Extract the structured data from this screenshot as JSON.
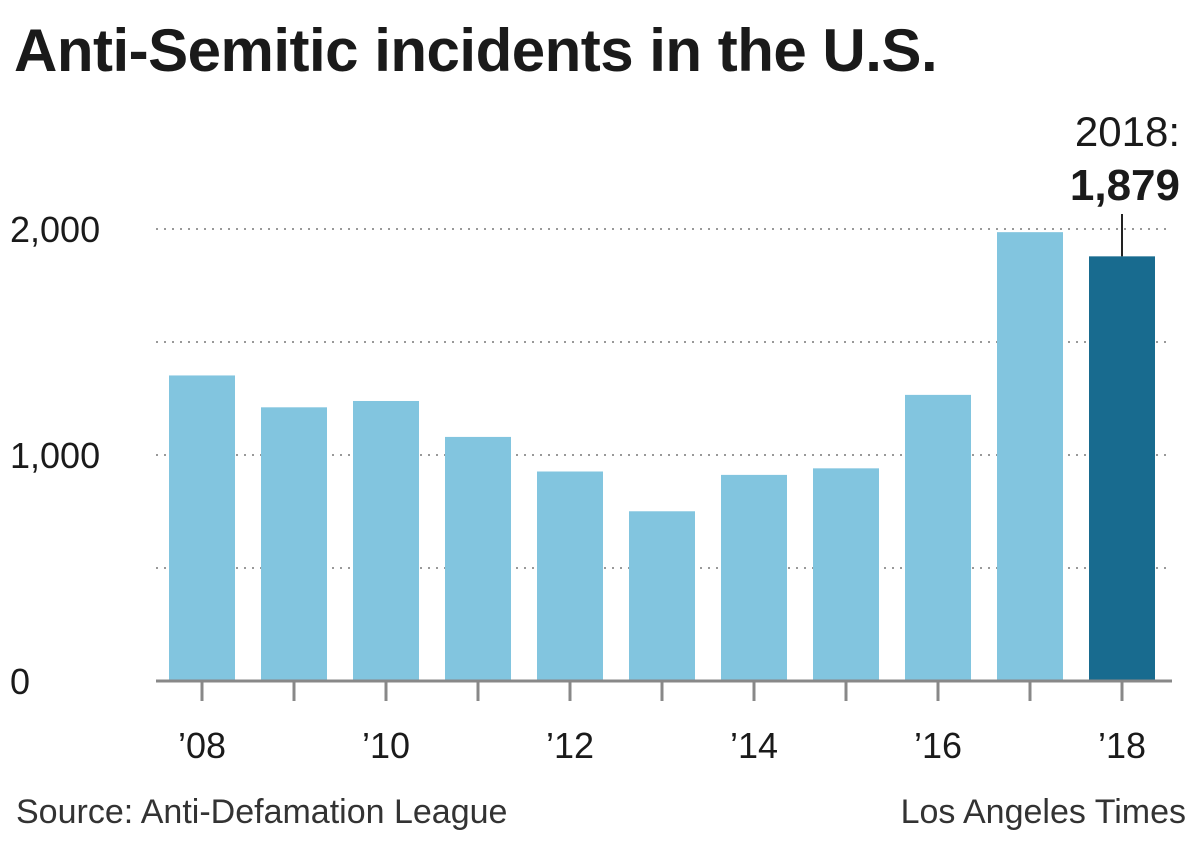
{
  "title": "Anti-Semitic incidents in the U.S.",
  "source": "Source: Anti-Defamation League",
  "credit": "Los Angeles Times",
  "colors": {
    "bar": "#82c5df",
    "highlight": "#186b8f",
    "grid": "#999999",
    "axis": "#888888",
    "text": "#1a1a1a"
  },
  "chart_data": {
    "type": "bar",
    "title": "Anti-Semitic incidents in the U.S.",
    "categories": [
      "2008",
      "2009",
      "2010",
      "2011",
      "2012",
      "2013",
      "2014",
      "2015",
      "2016",
      "2017",
      "2018"
    ],
    "values": [
      1352,
      1211,
      1239,
      1080,
      927,
      751,
      912,
      941,
      1266,
      1986,
      1879
    ],
    "highlight_index": 10,
    "highlight_label_year": "2018:",
    "highlight_label_value": "1,879",
    "ylim": [
      0,
      2000
    ],
    "yticks": [
      {
        "value": 0,
        "label": "0"
      },
      {
        "value": 500,
        "label": ""
      },
      {
        "value": 1000,
        "label": "1,000"
      },
      {
        "value": 1500,
        "label": ""
      },
      {
        "value": 2000,
        "label": "2,000"
      }
    ],
    "xtick_labels": [
      "’08",
      "",
      "’10",
      "",
      "’12",
      "",
      "’14",
      "",
      "’16",
      "",
      "’18"
    ],
    "grid": true,
    "xlabel": "",
    "ylabel": ""
  }
}
